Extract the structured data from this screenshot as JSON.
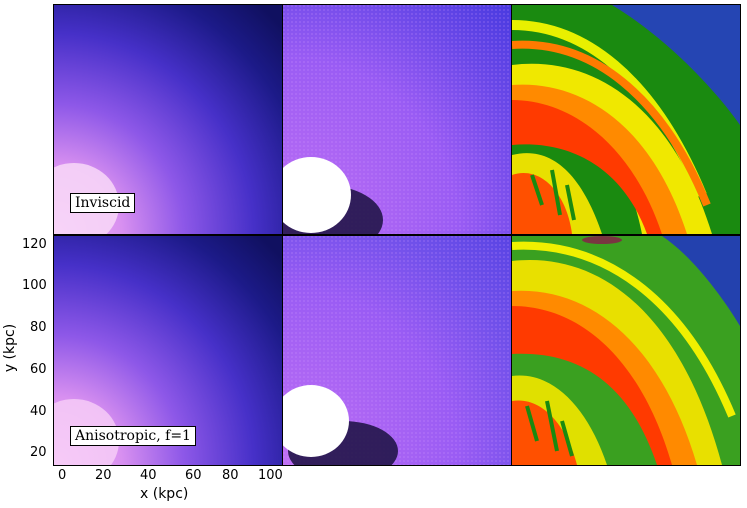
{
  "panels": {
    "top_left_label": "Inviscid",
    "bottom_left_label": "Anisotropic, f=1"
  },
  "axes": {
    "xlabel": "x (kpc)",
    "ylabel": "y (kpc)",
    "xticks": [
      "0",
      "20",
      "40",
      "60",
      "80",
      "100"
    ],
    "yticks": [
      "120",
      "100",
      "80",
      "60",
      "40",
      "20"
    ]
  },
  "colors": {
    "density_dark": "#101070",
    "density_mid": "#4a3ad8",
    "density_light": "#c070e8",
    "density_core": "#ffffff",
    "temp_base": "#7a3cf0",
    "temp_core": "#ffffff",
    "vel_green": "#1a8a10",
    "vel_yellow": "#f0f000",
    "vel_orange": "#ff8a00",
    "vel_red": "#ff3000",
    "vel_blue": "#1828c8"
  }
}
